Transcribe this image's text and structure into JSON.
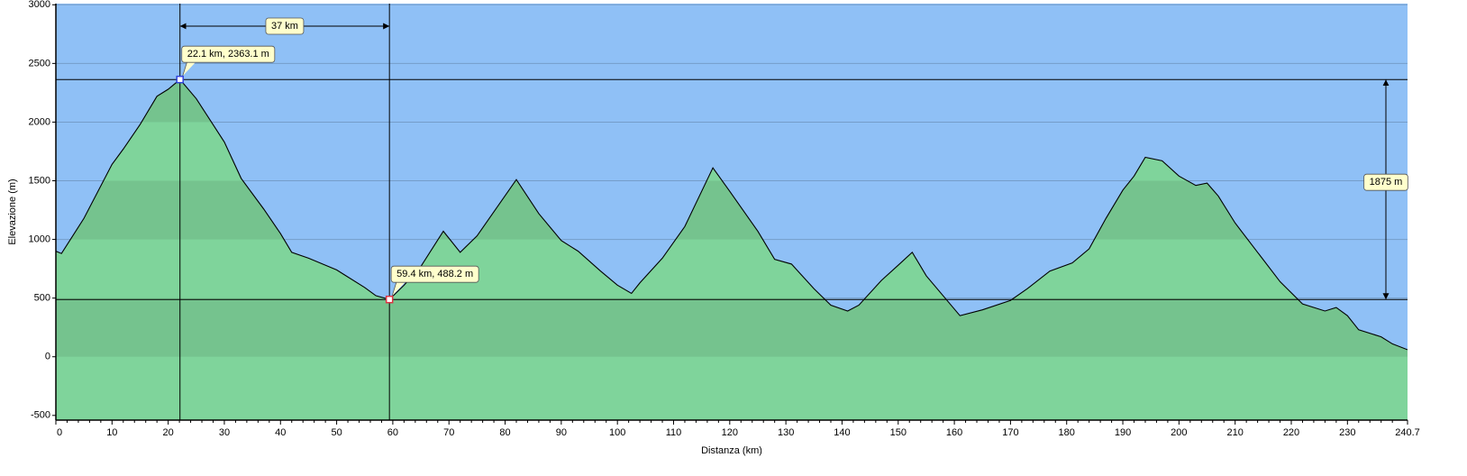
{
  "chart_data": {
    "type": "area",
    "x_label": "Distanza   (km)",
    "y_label": "Elevazione (m)",
    "x": [
      0,
      1,
      5,
      10,
      12,
      15,
      18,
      20,
      22.1,
      25,
      30,
      33,
      37,
      40,
      42,
      45,
      50,
      55,
      57,
      59.4,
      62,
      65,
      69,
      72,
      75,
      82,
      86,
      90,
      93,
      97,
      100,
      102.5,
      104,
      108,
      112,
      117,
      120,
      125,
      128,
      131,
      135,
      138,
      141,
      143,
      147,
      150,
      152.5,
      155,
      158,
      161,
      165,
      170,
      173,
      177,
      181,
      184,
      187,
      190,
      192,
      194,
      197,
      200,
      203,
      205,
      207,
      210,
      214,
      218,
      222,
      226,
      228,
      230,
      232,
      236,
      238,
      240.7
    ],
    "series": [
      {
        "name": "Elevazione",
        "color": "#7fd49b",
        "values": [
          900,
          880,
          1180,
          1640,
          1770,
          1980,
          2220,
          2280,
          2363.1,
          2200,
          1830,
          1520,
          1260,
          1050,
          890,
          840,
          740,
          590,
          520,
          488.2,
          610,
          770,
          1070,
          890,
          1030,
          1510,
          1220,
          990,
          900,
          730,
          610,
          540,
          630,
          840,
          1110,
          1610,
          1410,
          1070,
          830,
          790,
          580,
          440,
          390,
          440,
          650,
          780,
          890,
          690,
          520,
          350,
          400,
          480,
          580,
          730,
          800,
          920,
          1180,
          1420,
          1540,
          1700,
          1670,
          1540,
          1460,
          1480,
          1370,
          1140,
          890,
          640,
          450,
          390,
          420,
          350,
          230,
          170,
          110,
          60
        ]
      }
    ],
    "xlim": [
      0,
      240.7
    ],
    "ylim": [
      -540,
      3010
    ],
    "xticks": [
      0,
      10,
      20,
      30,
      40,
      50,
      60,
      70,
      80,
      90,
      100,
      110,
      120,
      130,
      140,
      150,
      160,
      170,
      180,
      190,
      200,
      210,
      220,
      230,
      240.7
    ],
    "yticks": [
      -500,
      0,
      500,
      1000,
      1500,
      2000,
      2500,
      3000
    ],
    "grid": true,
    "background": "#8fc0f6",
    "markers": [
      {
        "x": 22.1,
        "y": 2363.1,
        "label": "22.1 km, 2363.1 m",
        "color": "#3344dd"
      },
      {
        "x": 59.4,
        "y": 488.2,
        "label": "59.4 km, 488.2 m",
        "color": "#dd3344"
      }
    ],
    "distance_label": "37 km",
    "climb_label": "1875 m"
  }
}
